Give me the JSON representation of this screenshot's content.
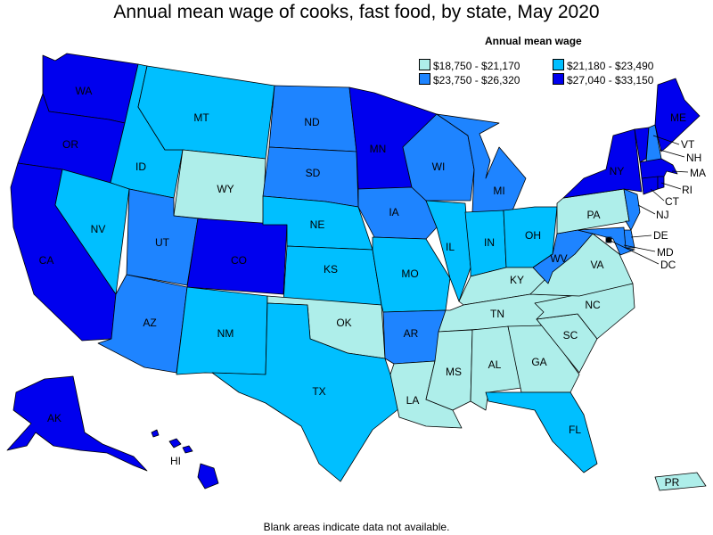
{
  "title": "Annual mean wage of cooks, fast food, by state, May 2020",
  "legend": {
    "title": "Annual mean wage",
    "items": [
      {
        "label": "$18,750 - $21,170",
        "color": "#aeeeea"
      },
      {
        "label": "$21,180 - $23,490",
        "color": "#00bfff"
      },
      {
        "label": "$23,750 - $26,320",
        "color": "#1e84ff"
      },
      {
        "label": "$27,040 - $33,150",
        "color": "#0000ee"
      }
    ]
  },
  "footer": "Blank areas indicate data not available.",
  "states": {
    "WA": 3,
    "OR": 3,
    "CA": 3,
    "ID": 1,
    "NV": 1,
    "MT": 1,
    "WY": 0,
    "UT": 2,
    "AZ": 2,
    "CO": 3,
    "NM": 1,
    "ND": 2,
    "SD": 2,
    "NE": 1,
    "KS": 1,
    "OK": 0,
    "TX": 1,
    "MN": 3,
    "IA": 2,
    "MO": 1,
    "AR": 2,
    "LA": 0,
    "WI": 2,
    "IL": 1,
    "MI": 2,
    "IN": 1,
    "OH": 1,
    "KY": 0,
    "TN": 0,
    "MS": 0,
    "AL": 0,
    "GA": 0,
    "FL": 1,
    "SC": 0,
    "NC": 0,
    "VA": 0,
    "WV": 2,
    "PA": 0,
    "NY": 3,
    "VT": 3,
    "NH": 2,
    "ME": 3,
    "MA": 3,
    "CT": 3,
    "RI": 3,
    "NJ": 2,
    "DE": 2,
    "MD": 2,
    "DC": 2,
    "AK": 3,
    "HI": 3,
    "PR": 0
  }
}
